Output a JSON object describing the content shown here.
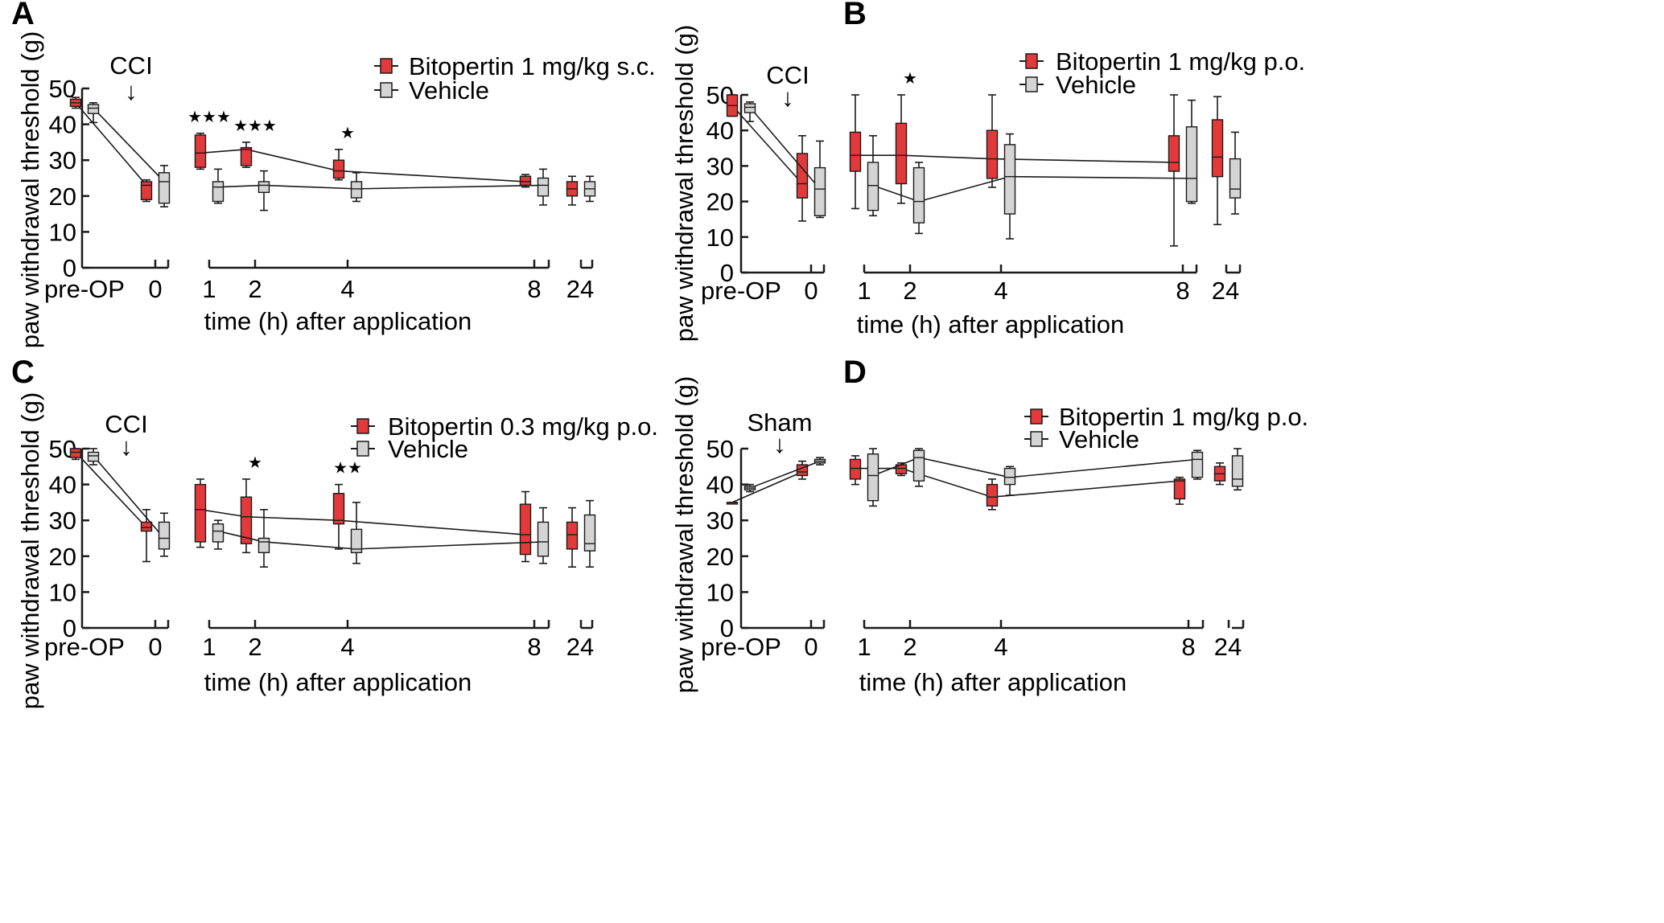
{
  "colors": {
    "bitopertin": "#e23a3a",
    "vehicle": "#d4d4d4",
    "stroke": "#1a1a1a"
  },
  "legend_icons": {
    "bitopertin": "red-box-legend-icon",
    "vehicle": "grey-box-legend-icon"
  },
  "chart_data": [
    {
      "panel": "A",
      "type": "box",
      "ylabel": "paw withdrawal threshold (g)",
      "xlabel": "time (h) after application",
      "ylim": [
        0,
        50
      ],
      "yticks": [
        "0",
        "10",
        "20",
        "30",
        "40",
        "50"
      ],
      "segments": [
        {
          "ticks": [
            "pre-OP",
            "0"
          ]
        },
        {
          "ticks": [
            "1",
            "2",
            "4",
            "8"
          ]
        },
        {
          "ticks": [
            "24"
          ]
        }
      ],
      "annotation": {
        "label": "CCI",
        "arrow": "↓"
      },
      "legend": [
        "Bitopertin 1 mg/kg s.c.",
        "Vehicle"
      ],
      "series": [
        {
          "name": "Bitopertin 1 mg/kg s.c.",
          "color_key": "bitopertin",
          "boxes": [
            {
              "x": "pre-OP",
              "min": 44.5,
              "q1": 45,
              "median": 46,
              "q3": 47,
              "max": 47.5
            },
            {
              "x": "0",
              "min": 18.5,
              "q1": 19,
              "median": 23,
              "q3": 24,
              "max": 24.5
            },
            {
              "x": "1",
              "min": 27.5,
              "q1": 28,
              "median": 32,
              "q3": 37,
              "max": 37.5
            },
            {
              "x": "2",
              "min": 28,
              "q1": 28.5,
              "median": 33,
              "q3": 33.5,
              "max": 35
            },
            {
              "x": "4",
              "min": 24.5,
              "q1": 25,
              "median": 27,
              "q3": 30,
              "max": 33
            },
            {
              "x": "8",
              "min": 22.5,
              "q1": 23,
              "median": 24,
              "q3": 25.5,
              "max": 26
            },
            {
              "x": "24",
              "min": 17.5,
              "q1": 20,
              "median": 22,
              "q3": 24,
              "max": 25.5
            }
          ],
          "significance": [
            "",
            "",
            "★★★",
            "★★★",
            "★",
            "",
            ""
          ]
        },
        {
          "name": "Vehicle",
          "color_key": "vehicle",
          "boxes": [
            {
              "x": "pre-OP",
              "min": 40.5,
              "q1": 43,
              "median": 44.5,
              "q3": 45.5,
              "max": 46
            },
            {
              "x": "0",
              "min": 17,
              "q1": 18,
              "median": 24,
              "q3": 26.5,
              "max": 28.5
            },
            {
              "x": "1",
              "min": 18,
              "q1": 18.5,
              "median": 22.5,
              "q3": 24,
              "max": 27.5
            },
            {
              "x": "2",
              "min": 16,
              "q1": 21,
              "median": 23,
              "q3": 24,
              "max": 27
            },
            {
              "x": "4",
              "min": 18.5,
              "q1": 19.5,
              "median": 22,
              "q3": 24,
              "max": 26.5
            },
            {
              "x": "8",
              "min": 17.5,
              "q1": 20,
              "median": 23,
              "q3": 25,
              "max": 27.5
            },
            {
              "x": "24",
              "min": 18.5,
              "q1": 20,
              "median": 22,
              "q3": 24,
              "max": 25.5
            }
          ]
        }
      ]
    },
    {
      "panel": "B",
      "type": "box",
      "ylabel": "paw withdrawal threshold (g)",
      "xlabel": "time (h) after application",
      "ylim": [
        0,
        50
      ],
      "yticks": [
        "0",
        "10",
        "20",
        "30",
        "40",
        "50"
      ],
      "segments": [
        {
          "ticks": [
            "pre-OP",
            "0"
          ]
        },
        {
          "ticks": [
            "1",
            "2",
            "4",
            "8"
          ]
        },
        {
          "ticks": [
            "24"
          ]
        }
      ],
      "annotation": {
        "label": "CCI",
        "arrow": "↓"
      },
      "legend": [
        "Bitopertin 1 mg/kg p.o.",
        "Vehicle"
      ],
      "series": [
        {
          "name": "Bitopertin 1 mg/kg p.o.",
          "color_key": "bitopertin",
          "boxes": [
            {
              "x": "pre-OP",
              "min": 44,
              "q1": 44,
              "median": 47,
              "q3": 50,
              "max": 50
            },
            {
              "x": "0",
              "min": 14.5,
              "q1": 21,
              "median": 25,
              "q3": 33.5,
              "max": 38.5
            },
            {
              "x": "1",
              "min": 18,
              "q1": 28.5,
              "median": 33,
              "q3": 39.5,
              "max": 50
            },
            {
              "x": "2",
              "min": 19.5,
              "q1": 25,
              "median": 33,
              "q3": 42,
              "max": 50
            },
            {
              "x": "4",
              "min": 24,
              "q1": 26.5,
              "median": 32,
              "q3": 40,
              "max": 50
            },
            {
              "x": "8",
              "min": 7.5,
              "q1": 28.5,
              "median": 31,
              "q3": 38.5,
              "max": 50
            },
            {
              "x": "24",
              "min": 13.5,
              "q1": 27,
              "median": 32.5,
              "q3": 43,
              "max": 49.5
            }
          ],
          "significance": [
            "",
            "",
            "",
            "★",
            "",
            "",
            ""
          ]
        },
        {
          "name": "Vehicle",
          "color_key": "vehicle",
          "boxes": [
            {
              "x": "pre-OP",
              "min": 42.5,
              "q1": 45,
              "median": 46.5,
              "q3": 47.5,
              "max": 48
            },
            {
              "x": "0",
              "min": 15.5,
              "q1": 16,
              "median": 23.5,
              "q3": 29.5,
              "max": 37
            },
            {
              "x": "1",
              "min": 16,
              "q1": 17.5,
              "median": 24.5,
              "q3": 31,
              "max": 38.5
            },
            {
              "x": "2",
              "min": 11,
              "q1": 14,
              "median": 20,
              "q3": 29.5,
              "max": 31
            },
            {
              "x": "4",
              "min": 9.5,
              "q1": 16.5,
              "median": 27,
              "q3": 36,
              "max": 39
            },
            {
              "x": "8",
              "min": 19.5,
              "q1": 20,
              "median": 26.5,
              "q3": 41,
              "max": 48.5
            },
            {
              "x": "24",
              "min": 16.5,
              "q1": 21,
              "median": 23.5,
              "q3": 32,
              "max": 39.5
            }
          ]
        }
      ]
    },
    {
      "panel": "C",
      "type": "box",
      "ylabel": "paw withdrawal threshold (g)",
      "xlabel": "time (h) after application",
      "ylim": [
        0,
        50
      ],
      "yticks": [
        "0",
        "10",
        "20",
        "30",
        "40",
        "50"
      ],
      "segments": [
        {
          "ticks": [
            "pre-OP",
            "0"
          ]
        },
        {
          "ticks": [
            "1",
            "2",
            "4",
            "8"
          ]
        },
        {
          "ticks": [
            "24"
          ]
        }
      ],
      "annotation": {
        "label": "CCI",
        "arrow": "↓"
      },
      "legend": [
        "Bitopertin 0.3 mg/kg p.o.",
        "Vehicle"
      ],
      "series": [
        {
          "name": "Bitopertin 0.3 mg/kg p.o.",
          "color_key": "bitopertin",
          "boxes": [
            {
              "x": "pre-OP",
              "min": 47,
              "q1": 47.5,
              "median": 49,
              "q3": 50,
              "max": 50
            },
            {
              "x": "0",
              "min": 18.5,
              "q1": 27,
              "median": 28,
              "q3": 29.5,
              "max": 33
            },
            {
              "x": "1",
              "min": 22.5,
              "q1": 24,
              "median": 33,
              "q3": 40,
              "max": 41.5
            },
            {
              "x": "2",
              "min": 21,
              "q1": 23.5,
              "median": 31,
              "q3": 36.5,
              "max": 41.5
            },
            {
              "x": "4",
              "min": 22,
              "q1": 29,
              "median": 30,
              "q3": 37.5,
              "max": 40
            },
            {
              "x": "8",
              "min": 18.5,
              "q1": 20.5,
              "median": 26,
              "q3": 34.5,
              "max": 38
            },
            {
              "x": "24",
              "min": 17,
              "q1": 22,
              "median": 26,
              "q3": 29.5,
              "max": 33.5
            }
          ],
          "significance": [
            "",
            "",
            "",
            "★",
            "★★",
            "",
            ""
          ]
        },
        {
          "name": "Vehicle",
          "color_key": "vehicle",
          "boxes": [
            {
              "x": "pre-OP",
              "min": 45.5,
              "q1": 46.5,
              "median": 48,
              "q3": 49,
              "max": 50
            },
            {
              "x": "0",
              "min": 20,
              "q1": 22,
              "median": 25,
              "q3": 29.5,
              "max": 32
            },
            {
              "x": "1",
              "min": 22,
              "q1": 24,
              "median": 27,
              "q3": 29,
              "max": 30
            },
            {
              "x": "2",
              "min": 17,
              "q1": 21,
              "median": 24,
              "q3": 25,
              "max": 33
            },
            {
              "x": "4",
              "min": 18,
              "q1": 21,
              "median": 22,
              "q3": 27.5,
              "max": 35
            },
            {
              "x": "8",
              "min": 18,
              "q1": 20,
              "median": 24,
              "q3": 29.5,
              "max": 33.5
            },
            {
              "x": "24",
              "min": 17,
              "q1": 21.5,
              "median": 23.5,
              "q3": 31.5,
              "max": 35.5
            }
          ]
        }
      ]
    },
    {
      "panel": "D",
      "type": "box",
      "ylabel": "paw withdrawal threshold (g)",
      "xlabel": "time (h) after application",
      "ylim": [
        0,
        50
      ],
      "yticks": [
        "0",
        "10",
        "20",
        "30",
        "40",
        "50"
      ],
      "segments": [
        {
          "ticks": [
            "pre-OP",
            "0"
          ]
        },
        {
          "ticks": [
            "1",
            "2",
            "4",
            "8"
          ]
        },
        {
          "ticks": [
            "24"
          ]
        }
      ],
      "annotation": {
        "label": "Sham",
        "arrow": "↓"
      },
      "legend": [
        "Bitopertin 1 mg/kg p.o.",
        "Vehicle"
      ],
      "series": [
        {
          "name": "Bitopertin 1 mg/kg p.o.",
          "color_key": "bitopertin",
          "boxes": [
            {
              "x": "pre-OP",
              "min": 35,
              "q1": 35,
              "median": 35,
              "q3": 35,
              "max": 35
            },
            {
              "x": "0",
              "min": 41.5,
              "q1": 42.5,
              "median": 43.5,
              "q3": 45.5,
              "max": 46.5
            },
            {
              "x": "1",
              "min": 40,
              "q1": 41.5,
              "median": 44.5,
              "q3": 47,
              "max": 48
            },
            {
              "x": "2",
              "min": 42.5,
              "q1": 43,
              "median": 44.5,
              "q3": 45.5,
              "max": 46
            },
            {
              "x": "4",
              "min": 33,
              "q1": 34,
              "median": 36.5,
              "q3": 40,
              "max": 41.5
            },
            {
              "x": "8",
              "min": 34.5,
              "q1": 36,
              "median": 41,
              "q3": 41.5,
              "max": 42
            },
            {
              "x": "24",
              "min": 40,
              "q1": 41,
              "median": 43,
              "q3": 45,
              "max": 46
            }
          ],
          "significance": [
            "",
            "",
            "",
            "",
            "",
            "",
            ""
          ]
        },
        {
          "name": "Vehicle",
          "color_key": "vehicle",
          "boxes": [
            {
              "x": "pre-OP",
              "min": 38,
              "q1": 38.5,
              "median": 39,
              "q3": 39.5,
              "max": 40
            },
            {
              "x": "0",
              "min": 45.5,
              "q1": 46,
              "median": 46.5,
              "q3": 47,
              "max": 47.5
            },
            {
              "x": "1",
              "min": 34,
              "q1": 35.5,
              "median": 42.5,
              "q3": 48.5,
              "max": 50
            },
            {
              "x": "2",
              "min": 39.5,
              "q1": 41,
              "median": 47.5,
              "q3": 49.5,
              "max": 50
            },
            {
              "x": "4",
              "min": 37,
              "q1": 40,
              "median": 42,
              "q3": 44.5,
              "max": 45
            },
            {
              "x": "8",
              "min": 41.5,
              "q1": 42,
              "median": 47,
              "q3": 49,
              "max": 49.5
            },
            {
              "x": "24",
              "min": 38.5,
              "q1": 39.5,
              "median": 41.5,
              "q3": 48,
              "max": 50
            }
          ]
        }
      ]
    }
  ]
}
